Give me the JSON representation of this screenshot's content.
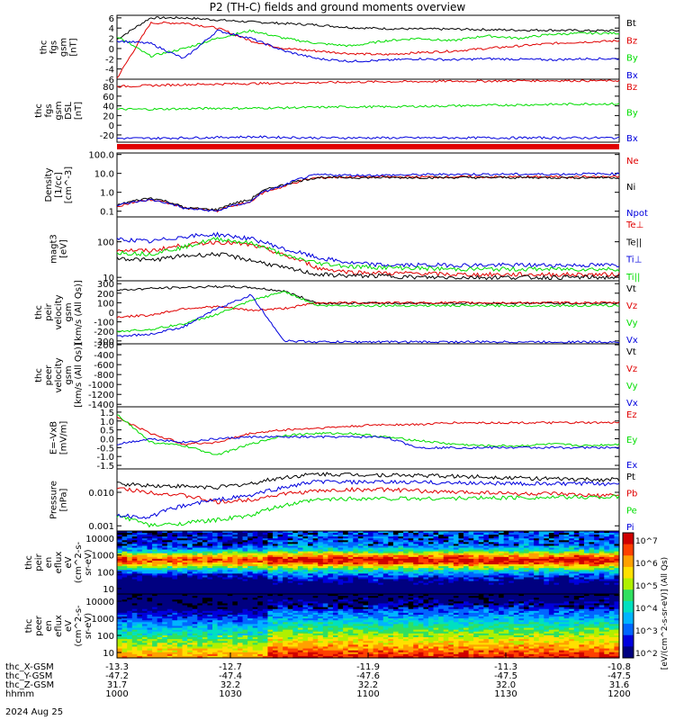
{
  "title": "P2 (TH-C) fields and ground moments overview",
  "colors": {
    "black": "#000000",
    "red": "#e00000",
    "green": "#00dd00",
    "blue": "#0000dd"
  },
  "chart_data": [
    {
      "type": "line",
      "name": "fgs_gsm",
      "ylabel": [
        "thc",
        "fgs",
        "gsm",
        "[nT]"
      ],
      "yticks": [
        "6",
        "4",
        "2",
        "0",
        "-2",
        "-4",
        "-6"
      ],
      "ylim": [
        -6,
        6.5
      ],
      "series": [
        {
          "name": "Bt",
          "color": "black",
          "values": [
            1.8,
            6.0,
            6.0,
            5.6,
            5.2,
            4.9,
            4.6,
            4.1,
            3.9,
            3.8,
            3.8,
            3.7,
            3.6,
            3.6,
            3.5,
            3.5
          ]
        },
        {
          "name": "Bz",
          "color": "red",
          "values": [
            -5.8,
            5.0,
            5.0,
            4.0,
            1.5,
            0.0,
            -0.5,
            -1.0,
            -1.2,
            -0.8,
            -0.5,
            0.0,
            0.5,
            1.0,
            1.3,
            1.5
          ]
        },
        {
          "name": "By",
          "color": "green",
          "values": [
            2.4,
            -1.5,
            0.0,
            2.0,
            3.5,
            2.0,
            1.0,
            0.5,
            1.5,
            2.0,
            1.5,
            2.5,
            2.0,
            2.8,
            3.0,
            3.0
          ]
        },
        {
          "name": "Bx",
          "color": "blue",
          "values": [
            1.5,
            1.0,
            -2.0,
            3.5,
            2.0,
            -0.5,
            -2.0,
            -2.5,
            -2.3,
            -2.0,
            -2.2,
            -2.0,
            -2.1,
            -2.2,
            -2.0,
            -2.0
          ]
        }
      ]
    },
    {
      "type": "line",
      "name": "fgs_dsl",
      "ylabel": [
        "thc",
        "fgs",
        "gsm",
        "DSL",
        "[nT]"
      ],
      "yticks": [
        "80",
        "60",
        "40",
        "20",
        "0",
        "-20"
      ],
      "ylim": [
        -35,
        95
      ],
      "series": [
        {
          "name": "Bz",
          "color": "red",
          "values": [
            80,
            82,
            84,
            85,
            86,
            87,
            88,
            89,
            90,
            90,
            91,
            91,
            92,
            92,
            92,
            92
          ]
        },
        {
          "name": "By",
          "color": "green",
          "values": [
            33,
            33,
            34,
            35,
            35,
            36,
            37,
            38,
            38,
            39,
            40,
            41,
            42,
            43,
            44,
            44
          ]
        },
        {
          "name": "Bx",
          "color": "blue",
          "values": [
            -27,
            -27,
            -26,
            -25,
            -24,
            -25,
            -26,
            -26,
            -26,
            -26,
            -26,
            -26,
            -26,
            -26,
            -26,
            -26
          ]
        }
      ]
    },
    {
      "type": "line",
      "name": "density",
      "ylabel": [
        "Density",
        "[1/cc]",
        "[cm^-3]"
      ],
      "yticks": [
        "100.0",
        "10.0",
        "1.0",
        "0.1"
      ],
      "log": true,
      "ylim": [
        0.05,
        120
      ],
      "series": [
        {
          "name": "Ne",
          "color": "red",
          "values": [
            0.18,
            0.4,
            0.15,
            0.1,
            0.3,
            2.0,
            6.0,
            6.5,
            6.5,
            6.5,
            6.6,
            6.5,
            6.5,
            6.6,
            6.6,
            6.5
          ]
        },
        {
          "name": "Ni",
          "color": "black",
          "values": [
            0.2,
            0.5,
            0.15,
            0.12,
            0.4,
            2.5,
            6.0,
            6.0,
            6.0,
            6.0,
            6.0,
            6.0,
            6.0,
            6.0,
            6.0,
            6.0
          ]
        },
        {
          "name": "Npot",
          "color": "blue",
          "values": [
            0.2,
            0.4,
            0.14,
            0.1,
            0.3,
            2.2,
            8.5,
            8.0,
            8.0,
            8.5,
            9.0,
            9.0,
            9.0,
            9.0,
            9.5,
            9.5
          ]
        }
      ]
    },
    {
      "type": "line",
      "name": "temperature",
      "ylabel": [
        "magt3",
        "[eV]"
      ],
      "yticks": [
        "100",
        "10"
      ],
      "log": true,
      "ylim": [
        8,
        500
      ],
      "series": [
        {
          "name": "Te⊥",
          "color": "red",
          "values": [
            60,
            55,
            80,
            100,
            80,
            40,
            18,
            14,
            13,
            13,
            12,
            12,
            12,
            12,
            12,
            12
          ]
        },
        {
          "name": "Te||",
          "color": "black",
          "values": [
            35,
            30,
            40,
            45,
            30,
            18,
            12,
            11,
            11,
            10,
            10,
            10,
            10,
            10,
            10,
            10
          ]
        },
        {
          "name": "Ti⊥",
          "color": "blue",
          "values": [
            120,
            100,
            140,
            160,
            120,
            60,
            35,
            25,
            22,
            22,
            22,
            22,
            22,
            22,
            22,
            22
          ]
        },
        {
          "name": "Ti||",
          "color": "green",
          "values": [
            50,
            45,
            70,
            120,
            90,
            40,
            25,
            20,
            19,
            18,
            17,
            17,
            17,
            17,
            17,
            17
          ]
        }
      ]
    },
    {
      "type": "line",
      "name": "peir_velocity",
      "ylabel": [
        "thc",
        "peir",
        "velocity",
        "gsm",
        "[km/s (All Qs)]"
      ],
      "yticks": [
        "300",
        "200",
        "100",
        "0",
        "-100",
        "-200",
        "-300"
      ],
      "ylim": [
        -330,
        330
      ],
      "series": [
        {
          "name": "Vt",
          "color": "black",
          "values": [
            230,
            250,
            260,
            270,
            260,
            220,
            95,
            95,
            95,
            95,
            95,
            95,
            95,
            95,
            95,
            95
          ]
        },
        {
          "name": "Vz",
          "color": "red",
          "values": [
            -50,
            -30,
            40,
            60,
            20,
            40,
            100,
            100,
            100,
            100,
            100,
            100,
            100,
            100,
            100,
            100
          ]
        },
        {
          "name": "Vy",
          "color": "green",
          "values": [
            -200,
            -180,
            -120,
            -20,
            120,
            220,
            70,
            70,
            70,
            70,
            70,
            70,
            70,
            70,
            70,
            70
          ]
        },
        {
          "name": "Vx",
          "color": "blue",
          "values": [
            -250,
            -230,
            -150,
            40,
            180,
            -300,
            -310,
            -310,
            -310,
            -310,
            -310,
            -310,
            -310,
            -310,
            -310,
            -310
          ]
        }
      ]
    },
    {
      "type": "line",
      "name": "peer_velocity",
      "ylabel": [
        "thc",
        "peer",
        "velocity",
        "gsm",
        "[km/s (All Qs)]"
      ],
      "yticks": [
        "-200",
        "-400",
        "-600",
        "-800",
        "-1000",
        "-1200",
        "-1400"
      ],
      "ylim": [
        -1450,
        -180
      ],
      "series": [
        {
          "name": "Vt",
          "color": "black",
          "values": []
        },
        {
          "name": "Vz",
          "color": "red",
          "values": []
        },
        {
          "name": "Vy",
          "color": "green",
          "values": []
        },
        {
          "name": "Vx",
          "color": "blue",
          "values": []
        }
      ]
    },
    {
      "type": "line",
      "name": "e_field",
      "ylabel": [
        "E=-VxB",
        "[mV/m]"
      ],
      "yticks": [
        "1.5",
        "1.0",
        "0.5",
        "0.0",
        "-0.5",
        "-1.0",
        "-1.5"
      ],
      "ylim": [
        -1.7,
        1.8
      ],
      "series": [
        {
          "name": "Ez",
          "color": "red",
          "values": [
            1.2,
            0.3,
            -0.3,
            -0.2,
            0.3,
            0.5,
            0.6,
            0.7,
            0.8,
            0.8,
            0.9,
            0.9,
            0.9,
            0.9,
            0.9,
            0.9
          ]
        },
        {
          "name": "Ey",
          "color": "green",
          "values": [
            1.4,
            -0.2,
            -0.4,
            -0.9,
            -0.3,
            0.2,
            0.3,
            0.3,
            0.1,
            -0.1,
            -0.3,
            -0.4,
            -0.4,
            -0.3,
            -0.4,
            -0.3
          ]
        },
        {
          "name": "Ex",
          "color": "blue",
          "values": [
            -0.3,
            0.0,
            -0.2,
            0.0,
            0.1,
            0.1,
            0.1,
            0.1,
            0.1,
            -0.5,
            -0.5,
            -0.5,
            -0.5,
            -0.5,
            -0.5,
            -0.5
          ]
        }
      ]
    },
    {
      "type": "line",
      "name": "pressure",
      "ylabel": [
        "Pressure",
        "[nPa]"
      ],
      "yticks": [
        "0.010",
        "0.001"
      ],
      "log": true,
      "ylim": [
        0.0007,
        0.05
      ],
      "series": [
        {
          "name": "Pt",
          "color": "black",
          "values": [
            0.018,
            0.016,
            0.015,
            0.014,
            0.018,
            0.028,
            0.035,
            0.034,
            0.033,
            0.032,
            0.03,
            0.029,
            0.027,
            0.025,
            0.024,
            0.024
          ]
        },
        {
          "name": "Pb",
          "color": "red",
          "values": [
            0.013,
            0.01,
            0.008,
            0.005,
            0.006,
            0.009,
            0.011,
            0.012,
            0.012,
            0.011,
            0.01,
            0.01,
            0.009,
            0.009,
            0.008,
            0.008
          ]
        },
        {
          "name": "Pe",
          "color": "green",
          "values": [
            0.002,
            0.001,
            0.0012,
            0.0015,
            0.002,
            0.004,
            0.006,
            0.0065,
            0.0065,
            0.0065,
            0.0066,
            0.0068,
            0.007,
            0.007,
            0.0072,
            0.0073
          ]
        },
        {
          "name": "Pi",
          "color": "blue",
          "values": [
            0.002,
            0.0018,
            0.004,
            0.006,
            0.008,
            0.014,
            0.021,
            0.02,
            0.02,
            0.02,
            0.019,
            0.019,
            0.018,
            0.018,
            0.018,
            0.018
          ]
        }
      ]
    },
    {
      "type": "heatmap",
      "name": "peir_en_eflux",
      "ylabel": [
        "thc",
        "peir",
        "en",
        "eflux",
        "eV",
        "(cm^2-s-",
        "sr-eV)"
      ],
      "yticks": [
        "10000",
        "1000",
        "100",
        "10"
      ]
    },
    {
      "type": "heatmap",
      "name": "peer_en_eflux",
      "ylabel": [
        "thc",
        "peer",
        "en",
        "eflux",
        "eV",
        "(cm^2-s-",
        "sr-eV)"
      ],
      "yticks": [
        "10000",
        "1000",
        "100",
        "10"
      ]
    }
  ],
  "colorbar": {
    "label": "[eV/(cm^2-s-sr-eV)] (All Qs)",
    "ticks": [
      "10^7",
      "10^6",
      "10^5",
      "10^4",
      "10^3",
      "10^2"
    ]
  },
  "xaxis": {
    "rows": [
      {
        "label": "thc_X-GSM",
        "values": [
          "-13.3",
          "-12.7",
          "-11.9",
          "-11.3",
          "-10.8"
        ]
      },
      {
        "label": "thc_Y-GSM",
        "values": [
          "-47.2",
          "-47.4",
          "-47.6",
          "-47.5",
          "-47.5"
        ]
      },
      {
        "label": "thc_Z-GSM",
        "values": [
          "31.7",
          "32.2",
          "32.2",
          "32.0",
          "31.6"
        ]
      },
      {
        "label": "hhmm",
        "values": [
          "1000",
          "1030",
          "1100",
          "1130",
          "1200"
        ]
      }
    ],
    "date": "2024 Aug 25"
  }
}
